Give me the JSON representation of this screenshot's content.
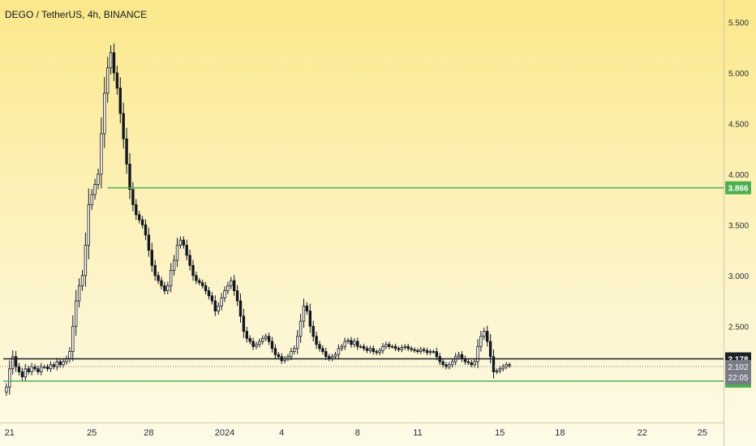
{
  "header": {
    "title": "DEGO / TetherUS, 4h, BINANCE"
  },
  "colors": {
    "up": "#26a69a",
    "down": "#131722",
    "green_line": "#4caf50",
    "dark_line": "#1b1f26",
    "current_badge": "#787b86"
  },
  "chart_data": {
    "type": "candlestick",
    "title": "DEGO / TetherUS, 4h, BINANCE",
    "y_ticks": [
      "2.500",
      "3.000",
      "3.500",
      "4.000",
      "4.500",
      "5.000",
      "5.500"
    ],
    "y_tick_values": [
      2.5,
      3.0,
      3.5,
      4.0,
      4.5,
      5.0,
      5.5
    ],
    "x_ticks": [
      {
        "label": "21",
        "index": 2
      },
      {
        "label": "25",
        "index": 28
      },
      {
        "label": "28",
        "index": 46
      },
      {
        "label": "2024",
        "index": 70
      },
      {
        "label": "4",
        "index": 88
      },
      {
        "label": "8",
        "index": 112
      },
      {
        "label": "11",
        "index": 131
      },
      {
        "label": "15",
        "index": 157
      },
      {
        "label": "18",
        "index": 176
      },
      {
        "label": "22",
        "index": 202
      },
      {
        "label": "25",
        "index": 221
      }
    ],
    "ylim": [
      1.55,
      5.72
    ],
    "lines": [
      {
        "name": "resistance",
        "value": 3.866,
        "label": "3.866",
        "color": "#4caf50",
        "start_index": 33
      },
      {
        "name": "support",
        "value": 1.958,
        "label": "1.958",
        "color": "#4caf50",
        "start_index": 0
      },
      {
        "name": "level",
        "value": 2.178,
        "label": "2.178",
        "color": "#1b1f26",
        "start_index": 0
      }
    ],
    "current_price": {
      "value": "2.102",
      "countdown": "22:05"
    },
    "price_path": [
      1.85,
      1.9,
      2.08,
      2.2,
      2.1,
      2.05,
      2.0,
      2.08,
      2.05,
      2.1,
      2.08,
      2.05,
      2.1,
      2.1,
      2.08,
      2.12,
      2.1,
      2.15,
      2.12,
      2.15,
      2.18,
      2.25,
      2.5,
      2.75,
      2.9,
      3.0,
      3.3,
      3.7,
      3.8,
      3.9,
      4.0,
      4.4,
      4.8,
      5.05,
      5.2,
      5.0,
      4.85,
      4.6,
      4.35,
      4.1,
      3.85,
      3.7,
      3.6,
      3.55,
      3.5,
      3.4,
      3.25,
      3.1,
      3.0,
      2.95,
      2.9,
      2.85,
      2.9,
      3.05,
      3.15,
      3.3,
      3.35,
      3.3,
      3.2,
      3.1,
      3.0,
      2.95,
      2.93,
      2.9,
      2.85,
      2.8,
      2.75,
      2.65,
      2.7,
      2.78,
      2.85,
      2.9,
      2.95,
      2.85,
      2.75,
      2.6,
      2.45,
      2.38,
      2.35,
      2.3,
      2.32,
      2.35,
      2.38,
      2.4,
      2.35,
      2.28,
      2.22,
      2.2,
      2.16,
      2.18,
      2.2,
      2.25,
      2.28,
      2.4,
      2.55,
      2.7,
      2.65,
      2.5,
      2.4,
      2.32,
      2.28,
      2.25,
      2.2,
      2.18,
      2.2,
      2.22,
      2.28,
      2.3,
      2.35,
      2.36,
      2.32,
      2.35,
      2.3,
      2.3,
      2.28,
      2.26,
      2.28,
      2.25,
      2.24,
      2.26,
      2.3,
      2.32,
      2.3,
      2.3,
      2.28,
      2.27,
      2.29,
      2.3,
      2.28,
      2.27,
      2.26,
      2.25,
      2.27,
      2.26,
      2.24,
      2.25,
      2.25,
      2.2,
      2.15,
      2.12,
      2.1,
      2.12,
      2.15,
      2.2,
      2.22,
      2.18,
      2.15,
      2.14,
      2.12,
      2.15,
      2.3,
      2.4,
      2.45,
      2.35,
      2.2,
      2.05,
      2.06,
      2.08,
      2.1,
      2.12,
      2.11
    ],
    "series_note": ""
  }
}
